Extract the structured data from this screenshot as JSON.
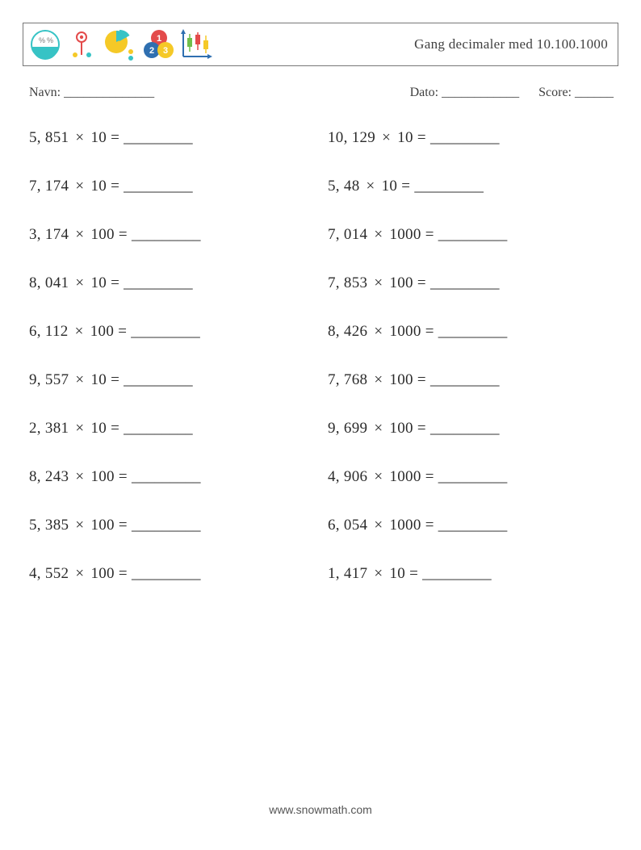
{
  "header": {
    "title": "Gang decimaler med 10.100.1000",
    "icons": [
      {
        "name": "percent-bowl-icon"
      },
      {
        "name": "pin-dots-icon"
      },
      {
        "name": "pie-dots-icon"
      },
      {
        "name": "number-circles-icon"
      },
      {
        "name": "candlestick-icon"
      }
    ]
  },
  "meta": {
    "name_label": "Navn: ______________",
    "date_label": "Dato: ____________",
    "score_label": "Score: ______"
  },
  "blank": "_________",
  "problems_left": [
    {
      "a": "5, 851",
      "b": "10"
    },
    {
      "a": "7, 174",
      "b": "10"
    },
    {
      "a": "3, 174",
      "b": "100"
    },
    {
      "a": "8, 041",
      "b": "10"
    },
    {
      "a": "6, 112",
      "b": "100"
    },
    {
      "a": "9, 557",
      "b": "10"
    },
    {
      "a": "2, 381",
      "b": "10"
    },
    {
      "a": "8, 243",
      "b": "100"
    },
    {
      "a": "5, 385",
      "b": "100"
    },
    {
      "a": "4, 552",
      "b": "100"
    }
  ],
  "problems_right": [
    {
      "a": "10, 129",
      "b": "10"
    },
    {
      "a": "5, 48",
      "b": "10"
    },
    {
      "a": "7, 014",
      "b": "1000"
    },
    {
      "a": "7, 853",
      "b": "100"
    },
    {
      "a": "8, 426",
      "b": "1000"
    },
    {
      "a": "7, 768",
      "b": "100"
    },
    {
      "a": "9, 699",
      "b": "100"
    },
    {
      "a": "4, 906",
      "b": "1000"
    },
    {
      "a": "6, 054",
      "b": "1000"
    },
    {
      "a": "1, 417",
      "b": "10"
    }
  ],
  "footer": {
    "url": "www.snowmath.com"
  },
  "colors": {
    "teal": "#37c3c5",
    "yellow": "#f5c927",
    "red": "#e34b4b",
    "blue": "#2f6fb0",
    "green": "#6fbf4b",
    "border": "#777777"
  }
}
